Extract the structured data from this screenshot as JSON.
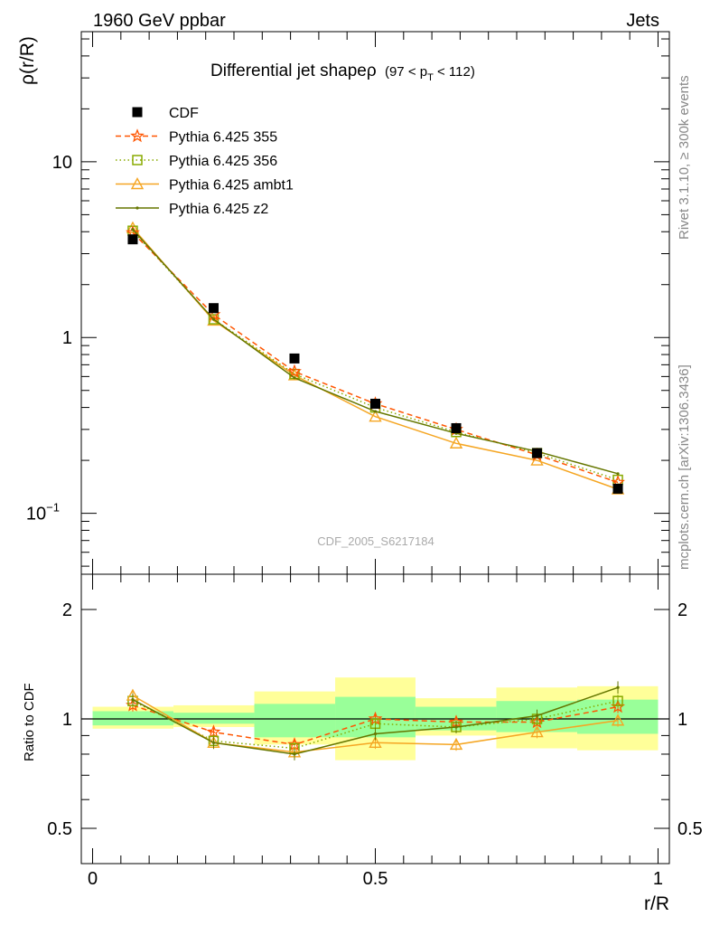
{
  "header": {
    "left": "1960 GeV ppbar",
    "right": "Jets"
  },
  "title_main": "Differential jet shapeρ",
  "title_cond_pre": "(97 < p",
  "title_cond_sub": "T",
  "title_cond_post": " < 112)",
  "side_text_top": "Rivet 3.1.10, ≥ 300k events",
  "side_text_bottom": "mcplots.cern.ch [arXiv:1306.3436]",
  "watermark": "CDF_2005_S6217184",
  "colors": {
    "CDF": "#000000",
    "Pythia 6.425 355": "#ff5500",
    "Pythia 6.425 356": "#88aa00",
    "Pythia 6.425 ambt1": "#f5a623",
    "Pythia 6.425 z2": "#667700",
    "band_inner": "#99ff99",
    "band_outer": "#ffff99"
  },
  "chart_data": [
    {
      "type": "line",
      "panel": "main",
      "ylabel": "ρ(r/R)",
      "y_scale": "log",
      "ylim": [
        0.045,
        55
      ],
      "xlim": [
        -0.02,
        1.02
      ],
      "y_ticks": [
        {
          "label": "10",
          "value": 10
        },
        {
          "label": "1",
          "value": 1
        },
        {
          "label": "10",
          "sup": "−1",
          "value": 0.1
        }
      ],
      "legend_position": "top-left",
      "x": [
        0.071,
        0.214,
        0.357,
        0.5,
        0.643,
        0.786,
        0.929
      ],
      "series": [
        {
          "name": "CDF",
          "marker": "square-filled",
          "values": [
            3.62,
            1.47,
            0.76,
            0.42,
            0.305,
            0.22,
            0.138
          ]
        },
        {
          "name": "Pythia 6.425 355",
          "marker": "star",
          "line": "dashed",
          "values": [
            3.95,
            1.35,
            0.64,
            0.42,
            0.3,
            0.215,
            0.15
          ]
        },
        {
          "name": "Pythia 6.425 356",
          "marker": "square-open",
          "line": "dotted",
          "values": [
            4.05,
            1.27,
            0.62,
            0.4,
            0.29,
            0.22,
            0.155
          ]
        },
        {
          "name": "Pythia 6.425 ambt1",
          "marker": "triangle-open",
          "line": "solid",
          "values": [
            4.2,
            1.25,
            0.61,
            0.355,
            0.25,
            0.2,
            0.137
          ]
        },
        {
          "name": "Pythia 6.425 z2",
          "marker": "dot",
          "line": "solid",
          "values": [
            4.12,
            1.27,
            0.59,
            0.38,
            0.285,
            0.225,
            0.168
          ]
        }
      ]
    },
    {
      "type": "line",
      "panel": "ratio",
      "ylabel": "Ratio to CDF",
      "xlabel": "r/R",
      "y_scale": "log",
      "ylim": [
        0.4,
        2.5
      ],
      "xlim": [
        -0.02,
        1.02
      ],
      "x_ticks": [
        {
          "label": "0",
          "value": 0
        },
        {
          "label": "0.5",
          "value": 0.5
        },
        {
          "label": "1",
          "value": 1
        }
      ],
      "y_ticks": [
        {
          "label": "2",
          "value": 2
        },
        {
          "label": "1",
          "value": 1
        },
        {
          "label": "0.5",
          "value": 0.5
        }
      ],
      "x": [
        0.071,
        0.214,
        0.357,
        0.5,
        0.643,
        0.786,
        0.929
      ],
      "bands": [
        {
          "x0": 0.0,
          "x1": 0.143,
          "inner": [
            0.96,
            1.05
          ],
          "outer": [
            0.94,
            1.08
          ]
        },
        {
          "x0": 0.143,
          "x1": 0.286,
          "inner": [
            0.97,
            1.04
          ],
          "outer": [
            0.95,
            1.09
          ]
        },
        {
          "x0": 0.286,
          "x1": 0.429,
          "inner": [
            0.89,
            1.1
          ],
          "outer": [
            0.85,
            1.19
          ]
        },
        {
          "x0": 0.429,
          "x1": 0.571,
          "inner": [
            0.89,
            1.15
          ],
          "outer": [
            0.77,
            1.3
          ]
        },
        {
          "x0": 0.571,
          "x1": 0.714,
          "inner": [
            0.93,
            1.08
          ],
          "outer": [
            0.9,
            1.14
          ]
        },
        {
          "x0": 0.714,
          "x1": 0.857,
          "inner": [
            0.92,
            1.12
          ],
          "outer": [
            0.83,
            1.22
          ]
        },
        {
          "x0": 0.857,
          "x1": 1.0,
          "inner": [
            0.91,
            1.13
          ],
          "outer": [
            0.82,
            1.23
          ]
        }
      ],
      "series": [
        {
          "name": "Pythia 6.425 355",
          "values": [
            1.09,
            0.92,
            0.85,
            1.0,
            0.98,
            0.98,
            1.08
          ]
        },
        {
          "name": "Pythia 6.425 356",
          "values": [
            1.12,
            0.87,
            0.83,
            0.97,
            0.95,
            1.0,
            1.12
          ]
        },
        {
          "name": "Pythia 6.425 ambt1",
          "values": [
            1.16,
            0.86,
            0.81,
            0.86,
            0.85,
            0.92,
            0.99
          ]
        },
        {
          "name": "Pythia 6.425 z2",
          "values": [
            1.13,
            0.86,
            0.8,
            0.91,
            0.95,
            1.02,
            1.22
          ]
        }
      ]
    }
  ]
}
